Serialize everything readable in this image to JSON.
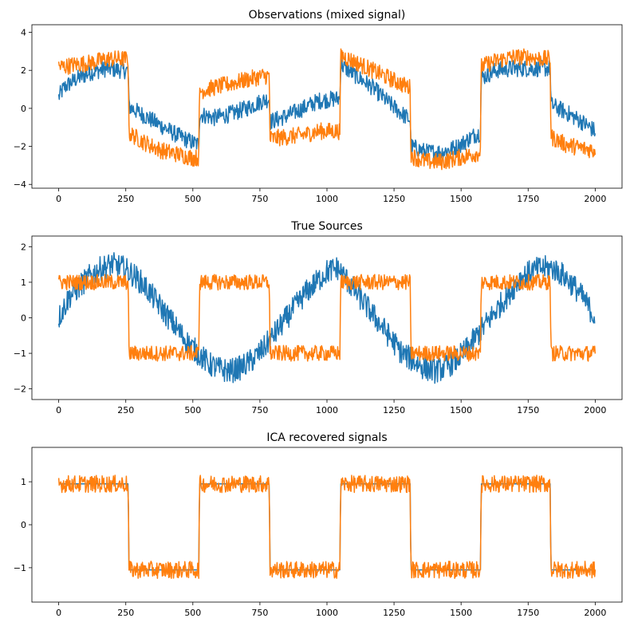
{
  "chart_data": [
    {
      "type": "line",
      "title": "Observations (mixed signal)",
      "xlim": [
        -100,
        2100
      ],
      "ylim": [
        -4.2,
        4.4
      ],
      "xticks": [
        0,
        250,
        500,
        750,
        1000,
        1250,
        1500,
        1750,
        2000
      ],
      "yticks": [
        -4,
        -2,
        0,
        2,
        4
      ],
      "xlabel": "",
      "ylabel": "",
      "legend": "none",
      "series": [
        {
          "name": "observation-1",
          "color": "#1f77b4",
          "x": [
            0,
            20,
            60,
            120,
            180,
            240,
            259,
            262,
            320,
            380,
            440,
            500,
            522,
            525,
            580,
            640,
            700,
            760,
            785,
            788,
            850,
            910,
            970,
            1030,
            1048,
            1051,
            1110,
            1170,
            1230,
            1290,
            1310,
            1313,
            1370,
            1430,
            1490,
            1550,
            1572,
            1575,
            1630,
            1690,
            1750,
            1810,
            1832,
            1835,
            1890,
            1950,
            2000
          ],
          "values": [
            0.6,
            1.1,
            1.5,
            1.9,
            2.1,
            2.0,
            2.0,
            0.1,
            -0.4,
            -0.9,
            -1.4,
            -1.8,
            -1.9,
            -0.3,
            -0.5,
            -0.3,
            0.0,
            0.4,
            0.5,
            -0.7,
            -0.4,
            0.0,
            0.4,
            0.5,
            0.5,
            2.3,
            1.7,
            1.1,
            0.3,
            -0.4,
            -0.6,
            -2.0,
            -2.3,
            -2.3,
            -2.0,
            -1.4,
            -1.3,
            1.6,
            2.0,
            2.1,
            2.1,
            2.1,
            2.1,
            0.2,
            -0.2,
            -0.7,
            -1.2
          ]
        },
        {
          "name": "observation-2",
          "color": "#ff7f0e",
          "x": [
            0,
            20,
            60,
            120,
            180,
            240,
            259,
            262,
            320,
            380,
            440,
            500,
            522,
            525,
            580,
            640,
            700,
            760,
            785,
            788,
            850,
            910,
            970,
            1030,
            1048,
            1051,
            1110,
            1170,
            1230,
            1290,
            1310,
            1313,
            1370,
            1430,
            1490,
            1550,
            1572,
            1575,
            1630,
            1690,
            1750,
            1810,
            1832,
            1835,
            1890,
            1950,
            2000
          ],
          "values": [
            2.2,
            2.2,
            2.3,
            2.4,
            2.6,
            2.6,
            2.6,
            -1.3,
            -1.8,
            -2.2,
            -2.4,
            -2.6,
            -2.6,
            0.9,
            1.1,
            1.3,
            1.5,
            1.7,
            1.7,
            -1.6,
            -1.5,
            -1.4,
            -1.2,
            -1.2,
            -1.2,
            2.8,
            2.4,
            2.0,
            1.6,
            1.2,
            1.1,
            -2.5,
            -2.8,
            -2.8,
            -2.6,
            -2.4,
            -2.3,
            2.2,
            2.5,
            2.7,
            2.7,
            2.6,
            2.6,
            -1.5,
            -1.9,
            -2.1,
            -2.2
          ]
        }
      ]
    },
    {
      "type": "line",
      "title": "True Sources",
      "xlim": [
        -100,
        2100
      ],
      "ylim": [
        -2.3,
        2.3
      ],
      "xticks": [
        0,
        250,
        500,
        750,
        1000,
        1250,
        1500,
        1750,
        2000
      ],
      "yticks": [
        -2,
        -1,
        0,
        1,
        2
      ],
      "xlabel": "",
      "ylabel": "",
      "legend": "none",
      "series": [
        {
          "name": "source-1",
          "color": "#1f77b4",
          "x": [
            0,
            40,
            80,
            120,
            160,
            200,
            240,
            280,
            320,
            360,
            400,
            440,
            480,
            520,
            560,
            600,
            640,
            680,
            720,
            760,
            800,
            840,
            880,
            920,
            960,
            1000,
            1040,
            1080,
            1120,
            1160,
            1200,
            1240,
            1280,
            1320,
            1360,
            1400,
            1440,
            1480,
            1520,
            1560,
            1600,
            1640,
            1680,
            1720,
            1760,
            1800,
            1840,
            1880,
            1920,
            1960,
            2000
          ],
          "values": [
            0.0,
            0.6,
            0.9,
            1.2,
            1.4,
            1.5,
            1.4,
            1.2,
            0.9,
            0.5,
            0.1,
            -0.3,
            -0.7,
            -1.0,
            -1.3,
            -1.45,
            -1.5,
            -1.4,
            -1.2,
            -0.9,
            -0.5,
            -0.1,
            0.3,
            0.7,
            1.0,
            1.3,
            1.4,
            1.0,
            0.6,
            0.2,
            -0.2,
            -0.6,
            -1.0,
            -1.2,
            -1.4,
            -1.5,
            -1.4,
            -1.2,
            -0.9,
            -0.5,
            -0.1,
            0.3,
            0.7,
            1.1,
            1.3,
            1.4,
            1.4,
            1.2,
            0.9,
            0.5,
            0.0
          ]
        },
        {
          "name": "source-2",
          "color": "#ff7f0e",
          "x": [
            0,
            259,
            262,
            522,
            525,
            785,
            788,
            1048,
            1051,
            1310,
            1313,
            1572,
            1575,
            1832,
            1835,
            2000
          ],
          "values": [
            1.0,
            1.0,
            -1.0,
            -1.0,
            1.0,
            1.0,
            -1.0,
            -1.0,
            1.0,
            1.0,
            -1.0,
            -1.0,
            1.0,
            1.0,
            -1.0,
            -1.0
          ]
        }
      ]
    },
    {
      "type": "line",
      "title": "ICA recovered signals",
      "xlim": [
        -100,
        2100
      ],
      "ylim": [
        -1.8,
        1.8
      ],
      "xticks": [
        0,
        250,
        500,
        750,
        1000,
        1250,
        1500,
        1750,
        2000
      ],
      "yticks": [
        -1,
        0,
        1
      ],
      "xlabel": "",
      "ylabel": "",
      "legend": "none",
      "series": [
        {
          "name": "recovered-1",
          "color": "#1f77b4",
          "x": [
            0,
            259,
            262,
            522,
            525,
            785,
            788,
            1048,
            1051,
            1310,
            1313,
            1572,
            1575,
            1832,
            1835,
            2000
          ],
          "values": [
            0.95,
            0.95,
            -1.05,
            -1.05,
            0.95,
            0.95,
            -1.05,
            -1.05,
            0.95,
            0.95,
            -1.05,
            -1.05,
            0.95,
            0.95,
            -1.05,
            -1.05
          ]
        },
        {
          "name": "recovered-2",
          "color": "#ff7f0e",
          "x": [
            0,
            259,
            262,
            522,
            525,
            785,
            788,
            1048,
            1051,
            1310,
            1313,
            1572,
            1575,
            1832,
            1835,
            2000
          ],
          "values": [
            0.95,
            0.95,
            -1.05,
            -1.05,
            0.95,
            0.95,
            -1.05,
            -1.05,
            0.95,
            0.95,
            -1.05,
            -1.05,
            0.95,
            0.95,
            -1.05,
            -1.05
          ]
        }
      ]
    }
  ]
}
